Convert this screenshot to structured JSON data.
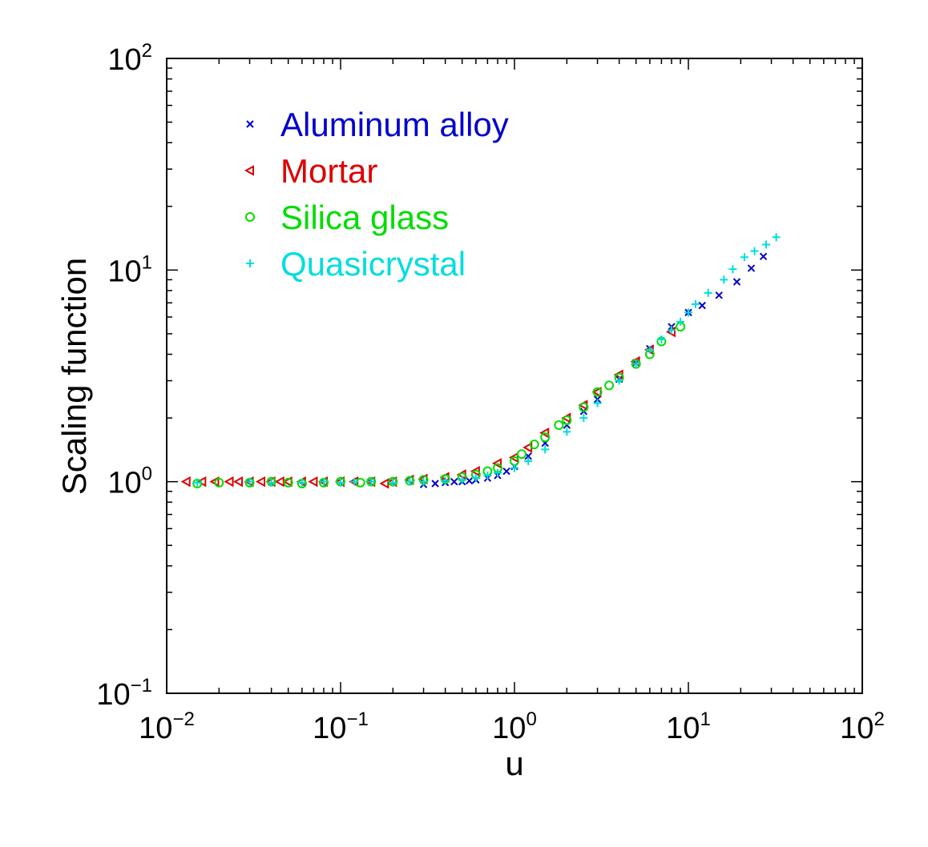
{
  "chart_data": {
    "type": "scatter",
    "title": "",
    "xlabel": "u",
    "ylabel": "Scaling function",
    "xscale": "log",
    "yscale": "log",
    "xlim": [
      0.01,
      100
    ],
    "ylim": [
      0.1,
      100
    ],
    "grid": false,
    "legend_position": "top-left",
    "x_ticks": [
      {
        "base": "10",
        "exp": "−2",
        "value": 0.01
      },
      {
        "base": "10",
        "exp": "−1",
        "value": 0.1
      },
      {
        "base": "10",
        "exp": "0",
        "value": 1
      },
      {
        "base": "10",
        "exp": "1",
        "value": 10
      },
      {
        "base": "10",
        "exp": "2",
        "value": 100
      }
    ],
    "y_ticks": [
      {
        "base": "10",
        "exp": "−1",
        "value": 0.1
      },
      {
        "base": "10",
        "exp": "0",
        "value": 1
      },
      {
        "base": "10",
        "exp": "1",
        "value": 10
      },
      {
        "base": "10",
        "exp": "2",
        "value": 100
      }
    ],
    "series": [
      {
        "name": "Aluminum alloy",
        "marker": "x",
        "color": "#0000cc",
        "x": [
          0.3,
          0.35,
          0.4,
          0.45,
          0.5,
          0.55,
          0.6,
          0.7,
          0.8,
          0.9,
          1.0,
          1.2,
          1.5,
          2.0,
          2.5,
          3.0,
          4.0,
          5.0,
          6.0,
          8.0,
          10.0,
          12.0,
          15.0,
          19.0,
          23.0,
          27.0
        ],
        "y": [
          0.97,
          0.98,
          0.99,
          1.0,
          1.0,
          1.01,
          1.02,
          1.04,
          1.07,
          1.12,
          1.18,
          1.32,
          1.52,
          1.85,
          2.15,
          2.45,
          3.05,
          3.65,
          4.25,
          5.4,
          6.3,
          6.8,
          7.6,
          8.8,
          10.2,
          11.6
        ]
      },
      {
        "name": "Mortar",
        "marker": "triangle-left",
        "color": "#dd0000",
        "x": [
          0.013,
          0.016,
          0.019,
          0.023,
          0.026,
          0.03,
          0.035,
          0.04,
          0.045,
          0.05,
          0.06,
          0.07,
          0.08,
          0.1,
          0.12,
          0.15,
          0.18,
          0.2,
          0.25,
          0.3,
          0.4,
          0.5,
          0.6,
          0.8,
          1.0,
          1.2,
          1.5,
          2.0,
          2.5,
          3.0,
          4.0,
          5.0,
          6.0,
          8.0
        ],
        "y": [
          1.0,
          1.0,
          1.0,
          1.0,
          1.0,
          1.0,
          1.0,
          1.0,
          1.0,
          1.0,
          1.0,
          1.0,
          1.0,
          1.0,
          1.0,
          1.0,
          0.98,
          1.0,
          1.02,
          1.03,
          1.05,
          1.08,
          1.12,
          1.22,
          1.3,
          1.45,
          1.7,
          2.0,
          2.3,
          2.65,
          3.2,
          3.7,
          4.2,
          5.1
        ]
      },
      {
        "name": "Silica glass",
        "marker": "circle",
        "color": "#00dd00",
        "x": [
          0.015,
          0.02,
          0.03,
          0.04,
          0.05,
          0.06,
          0.08,
          0.1,
          0.13,
          0.15,
          0.2,
          0.25,
          0.3,
          0.4,
          0.5,
          0.6,
          0.7,
          0.8,
          1.0,
          1.1,
          1.3,
          1.5,
          1.8,
          2.0,
          2.5,
          3.0,
          3.5,
          4.0,
          5.0,
          6.0,
          7.0,
          9.0
        ],
        "y": [
          0.98,
          0.99,
          0.99,
          1.0,
          0.99,
          0.98,
          0.99,
          1.0,
          0.99,
          1.0,
          1.0,
          1.01,
          1.02,
          1.03,
          1.05,
          1.08,
          1.12,
          1.16,
          1.25,
          1.35,
          1.5,
          1.62,
          1.85,
          1.95,
          2.25,
          2.65,
          2.85,
          3.1,
          3.6,
          4.0,
          4.6,
          5.4
        ]
      },
      {
        "name": "Quasicrystal",
        "marker": "plus",
        "color": "#00dddd",
        "x": [
          0.015,
          0.03,
          0.04,
          0.06,
          0.08,
          0.1,
          0.12,
          0.15,
          0.2,
          0.25,
          0.3,
          0.4,
          0.5,
          0.6,
          0.7,
          0.8,
          1.0,
          1.2,
          1.5,
          2.0,
          2.5,
          3.0,
          4.0,
          5.0,
          6.0,
          7.0,
          8.0,
          9.0,
          10.0,
          11.0,
          13.0,
          16.0,
          18.0,
          21.0,
          24.0,
          28.0,
          32.0
        ],
        "y": [
          0.99,
          1.0,
          0.99,
          0.99,
          1.0,
          0.99,
          1.0,
          1.0,
          0.99,
          1.0,
          1.0,
          1.01,
          1.02,
          1.04,
          1.07,
          1.1,
          1.16,
          1.25,
          1.42,
          1.72,
          2.0,
          2.35,
          3.0,
          3.6,
          4.2,
          4.7,
          5.2,
          5.7,
          6.3,
          6.9,
          7.8,
          9.0,
          10.1,
          11.5,
          12.3,
          13.2,
          14.3
        ]
      }
    ]
  }
}
